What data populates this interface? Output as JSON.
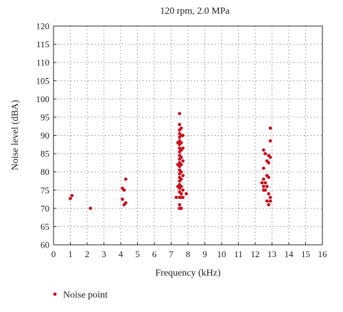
{
  "chart_data": {
    "type": "scatter",
    "title": "120 rpm, 2.0 MPa",
    "xlabel": "Frequency (kHz)",
    "ylabel": "Noise level (dBA)",
    "xlim": [
      0,
      16
    ],
    "ylim": [
      60,
      120
    ],
    "x_ticks": [
      0,
      1,
      2,
      3,
      4,
      5,
      6,
      7,
      8,
      9,
      10,
      11,
      12,
      13,
      14,
      15,
      16
    ],
    "y_ticks": [
      60,
      65,
      70,
      75,
      80,
      85,
      90,
      95,
      100,
      105,
      110,
      115,
      120
    ],
    "grid": true,
    "grid_style": "dotted",
    "legend_position": "bottom-left",
    "series": [
      {
        "name": "Noise point",
        "color": "#c8101e",
        "points": [
          [
            1.0,
            72.7
          ],
          [
            1.1,
            73.5
          ],
          [
            2.2,
            70.0
          ],
          [
            4.1,
            75.5
          ],
          [
            4.1,
            72.5
          ],
          [
            4.2,
            75.0
          ],
          [
            4.3,
            78.0
          ],
          [
            4.2,
            71.0
          ],
          [
            4.3,
            71.5
          ],
          [
            7.5,
            96.0
          ],
          [
            7.5,
            93.0
          ],
          [
            7.5,
            91.5
          ],
          [
            7.5,
            90.5
          ],
          [
            7.5,
            89.5
          ],
          [
            7.5,
            88.5
          ],
          [
            7.5,
            87.5
          ],
          [
            7.5,
            86.5
          ],
          [
            7.5,
            85.5
          ],
          [
            7.5,
            84.5
          ],
          [
            7.5,
            83.5
          ],
          [
            7.5,
            82.5
          ],
          [
            7.5,
            81.5
          ],
          [
            7.5,
            80.5
          ],
          [
            7.5,
            79.5
          ],
          [
            7.5,
            78.5
          ],
          [
            7.5,
            77.5
          ],
          [
            7.5,
            76.5
          ],
          [
            7.5,
            75.5
          ],
          [
            7.5,
            74.5
          ],
          [
            7.5,
            73.0
          ],
          [
            7.5,
            71.0
          ],
          [
            7.5,
            70.0
          ],
          [
            7.4,
            88.0
          ],
          [
            7.4,
            82.0
          ],
          [
            7.4,
            76.0
          ],
          [
            7.6,
            92.0
          ],
          [
            7.6,
            90.0
          ],
          [
            7.6,
            88.0
          ],
          [
            7.6,
            86.0
          ],
          [
            7.6,
            84.0
          ],
          [
            7.6,
            82.0
          ],
          [
            7.6,
            80.0
          ],
          [
            7.6,
            78.0
          ],
          [
            7.6,
            76.0
          ],
          [
            7.6,
            74.0
          ],
          [
            7.6,
            73.0
          ],
          [
            7.6,
            70.0
          ],
          [
            7.7,
            90.0
          ],
          [
            7.7,
            86.5
          ],
          [
            7.7,
            83.0
          ],
          [
            7.7,
            79.0
          ],
          [
            7.7,
            75.0
          ],
          [
            7.7,
            73.0
          ],
          [
            7.3,
            73.0
          ],
          [
            7.9,
            74.0
          ],
          [
            12.5,
            86.0
          ],
          [
            12.5,
            81.0
          ],
          [
            12.5,
            78.0
          ],
          [
            12.5,
            76.0
          ],
          [
            12.5,
            75.0
          ],
          [
            12.6,
            85.0
          ],
          [
            12.6,
            77.0
          ],
          [
            12.6,
            75.0
          ],
          [
            12.7,
            83.0
          ],
          [
            12.7,
            79.0
          ],
          [
            12.7,
            76.0
          ],
          [
            12.7,
            72.0
          ],
          [
            12.8,
            84.5
          ],
          [
            12.8,
            82.5
          ],
          [
            12.8,
            78.5
          ],
          [
            12.8,
            74.0
          ],
          [
            12.8,
            71.0
          ],
          [
            12.9,
            92.0
          ],
          [
            12.9,
            88.5
          ],
          [
            12.9,
            84.0
          ],
          [
            12.9,
            73.0
          ],
          [
            12.9,
            72.0
          ],
          [
            12.4,
            77.0
          ]
        ]
      }
    ]
  }
}
